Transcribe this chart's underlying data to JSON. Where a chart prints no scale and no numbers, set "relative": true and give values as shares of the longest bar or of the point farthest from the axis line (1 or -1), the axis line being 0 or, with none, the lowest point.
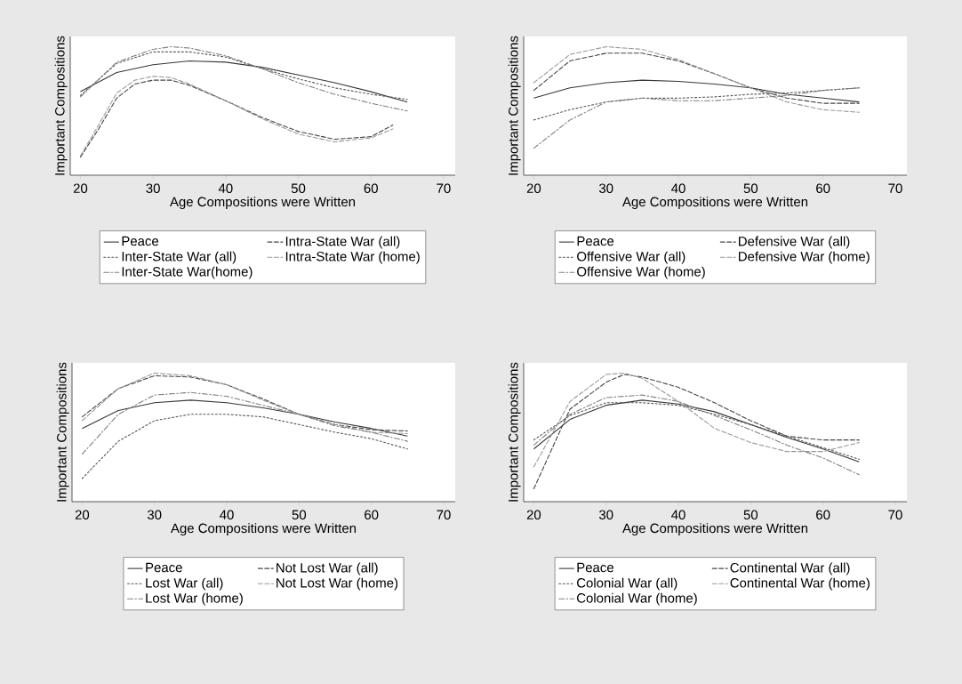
{
  "chart_data": [
    {
      "type": "line",
      "xlabel": "Age Compositions were Written",
      "ylabel": "Important Compositions",
      "xlim": [
        18.6,
        71.6
      ],
      "xticks": [
        20,
        30,
        40,
        50,
        60,
        70
      ],
      "relative": true,
      "legend": "bottom",
      "series": [
        {
          "name": "Peace",
          "color": "#383838",
          "line_style": "solid",
          "x": [
            20,
            25,
            30,
            35,
            40,
            45,
            50,
            55,
            60,
            65
          ],
          "values": [
            0.65,
            0.8,
            0.86,
            0.89,
            0.88,
            0.84,
            0.78,
            0.72,
            0.65,
            0.57
          ]
        },
        {
          "name": "Intra-State War (all)",
          "color": "#454545",
          "line_style": "dashed",
          "x": [
            20,
            22.5,
            25,
            27.5,
            30,
            32.5,
            35,
            40,
            45,
            50,
            55,
            60,
            63
          ],
          "values": [
            0.14,
            0.36,
            0.6,
            0.71,
            0.74,
            0.74,
            0.7,
            0.58,
            0.45,
            0.34,
            0.28,
            0.3,
            0.39
          ]
        },
        {
          "name": "Inter-State War (all)",
          "color": "#555555",
          "line_style": "dotted",
          "x": [
            20,
            25,
            30,
            35,
            40,
            45,
            50,
            55,
            60,
            65
          ],
          "values": [
            0.62,
            0.87,
            0.96,
            0.96,
            0.92,
            0.83,
            0.75,
            0.68,
            0.63,
            0.59
          ]
        },
        {
          "name": "Intra-State War (home)",
          "color": "#9a9a9a",
          "line_style": "dashed",
          "x": [
            20,
            22.5,
            25,
            27.5,
            30,
            32.5,
            35,
            40,
            45,
            50,
            55,
            60,
            63
          ],
          "values": [
            0.15,
            0.39,
            0.64,
            0.74,
            0.77,
            0.76,
            0.71,
            0.58,
            0.44,
            0.32,
            0.26,
            0.29,
            0.36
          ]
        },
        {
          "name": "Inter-State War(home)",
          "color": "#808080",
          "line_style": "dashdot",
          "x": [
            20,
            25,
            30,
            32.5,
            35,
            40,
            45,
            50,
            55,
            60,
            65
          ],
          "values": [
            0.61,
            0.88,
            0.98,
            1.0,
            0.99,
            0.93,
            0.83,
            0.72,
            0.63,
            0.56,
            0.5
          ]
        }
      ]
    },
    {
      "type": "line",
      "xlabel": "Age Compositions were Written",
      "ylabel": "Important Compositions",
      "xlim": [
        18.6,
        71.6
      ],
      "xticks": [
        20,
        30,
        40,
        50,
        60,
        70
      ],
      "relative": true,
      "legend": "bottom",
      "series": [
        {
          "name": "Peace",
          "color": "#383838",
          "line_style": "solid",
          "x": [
            20,
            25,
            30,
            35,
            40,
            45,
            50,
            55,
            60,
            65
          ],
          "values": [
            0.6,
            0.68,
            0.72,
            0.74,
            0.73,
            0.71,
            0.68,
            0.63,
            0.6,
            0.57
          ]
        },
        {
          "name": "Defensive War (all)",
          "color": "#454545",
          "line_style": "dashed",
          "x": [
            20,
            25,
            30,
            35,
            40,
            45,
            50,
            55,
            60,
            65
          ],
          "values": [
            0.66,
            0.89,
            0.95,
            0.95,
            0.89,
            0.79,
            0.68,
            0.6,
            0.56,
            0.56
          ]
        },
        {
          "name": "Offensive War (all)",
          "color": "#555555",
          "line_style": "dotted",
          "x": [
            20,
            25,
            30,
            35,
            40,
            45,
            50,
            55,
            60,
            65
          ],
          "values": [
            0.43,
            0.51,
            0.57,
            0.6,
            0.6,
            0.61,
            0.63,
            0.64,
            0.66,
            0.68
          ]
        },
        {
          "name": "Defensive War (home)",
          "color": "#9a9a9a",
          "line_style": "dashed",
          "x": [
            20,
            25,
            30,
            35,
            40,
            45,
            50,
            55,
            60,
            65
          ],
          "values": [
            0.72,
            0.94,
            1.0,
            0.98,
            0.9,
            0.79,
            0.68,
            0.57,
            0.51,
            0.49
          ]
        },
        {
          "name": "Offensive War (home)",
          "color": "#808080",
          "line_style": "dashdot",
          "x": [
            20,
            25,
            30,
            35,
            40,
            45,
            50,
            55,
            60,
            65
          ],
          "values": [
            0.21,
            0.43,
            0.57,
            0.6,
            0.58,
            0.58,
            0.6,
            0.62,
            0.66,
            0.68
          ]
        }
      ]
    },
    {
      "type": "line",
      "xlabel": "Age Compositions were Written",
      "ylabel": "Important Compositions",
      "xlim": [
        18.6,
        71.6
      ],
      "xticks": [
        20,
        30,
        40,
        50,
        60,
        70
      ],
      "relative": true,
      "legend": "bottom",
      "series": [
        {
          "name": "Peace",
          "color": "#383838",
          "line_style": "solid",
          "x": [
            20,
            25,
            30,
            35,
            40,
            45,
            50,
            55,
            60,
            65
          ],
          "values": [
            0.57,
            0.71,
            0.77,
            0.79,
            0.77,
            0.73,
            0.68,
            0.62,
            0.57,
            0.51
          ]
        },
        {
          "name": "Not Lost War (all)",
          "color": "#454545",
          "line_style": "dashed",
          "x": [
            20,
            25,
            30,
            35,
            40,
            45,
            50,
            55,
            60,
            65
          ],
          "values": [
            0.66,
            0.88,
            0.98,
            0.97,
            0.91,
            0.8,
            0.68,
            0.6,
            0.56,
            0.55
          ]
        },
        {
          "name": "Lost War (all)",
          "color": "#555555",
          "line_style": "dotted",
          "x": [
            20,
            25,
            30,
            35,
            40,
            45,
            50,
            55,
            60,
            65
          ],
          "values": [
            0.18,
            0.47,
            0.63,
            0.68,
            0.68,
            0.66,
            0.6,
            0.54,
            0.49,
            0.41
          ]
        },
        {
          "name": "Not Lost War (home)",
          "color": "#9a9a9a",
          "line_style": "dashed",
          "x": [
            20,
            25,
            30,
            35,
            40,
            45,
            50,
            55,
            60,
            65
          ],
          "values": [
            0.63,
            0.88,
            1.0,
            0.98,
            0.91,
            0.79,
            0.68,
            0.6,
            0.54,
            0.53
          ]
        },
        {
          "name": "Lost War (home)",
          "color": "#808080",
          "line_style": "dashdot",
          "x": [
            20,
            25,
            30,
            35,
            40,
            45,
            50,
            55,
            60,
            65
          ],
          "values": [
            0.37,
            0.68,
            0.83,
            0.85,
            0.82,
            0.75,
            0.68,
            0.59,
            0.54,
            0.47
          ]
        }
      ]
    },
    {
      "type": "line",
      "xlabel": "Age Compositions were Written",
      "ylabel": "Important Compositions",
      "xlim": [
        18.6,
        71.6
      ],
      "xticks": [
        20,
        30,
        40,
        50,
        60,
        70
      ],
      "relative": true,
      "legend": "bottom",
      "series": [
        {
          "name": "Peace",
          "color": "#383838",
          "line_style": "solid",
          "x": [
            20,
            25,
            30,
            35,
            40,
            45,
            50,
            55,
            60,
            65
          ],
          "values": [
            0.41,
            0.64,
            0.75,
            0.79,
            0.76,
            0.7,
            0.6,
            0.5,
            0.41,
            0.31
          ]
        },
        {
          "name": "Continental War (all)",
          "color": "#454545",
          "line_style": "dashed",
          "x": [
            20,
            25,
            30,
            32.5,
            35,
            40,
            45,
            50,
            55,
            60,
            65
          ],
          "values": [
            0.1,
            0.72,
            0.93,
            0.99,
            0.97,
            0.89,
            0.77,
            0.63,
            0.51,
            0.48,
            0.48
          ]
        },
        {
          "name": "Colonial War (all)",
          "color": "#555555",
          "line_style": "dotted",
          "x": [
            20,
            25,
            30,
            35,
            40,
            45,
            50,
            55,
            60,
            65
          ],
          "values": [
            0.48,
            0.67,
            0.77,
            0.77,
            0.75,
            0.68,
            0.6,
            0.51,
            0.42,
            0.33
          ]
        },
        {
          "name": "Continental War (home)",
          "color": "#9a9a9a",
          "line_style": "dashed",
          "x": [
            20,
            25,
            30,
            32.5,
            35,
            40,
            45,
            50,
            55,
            60,
            65
          ],
          "values": [
            0.27,
            0.78,
            0.99,
            1.0,
            0.96,
            0.78,
            0.57,
            0.46,
            0.39,
            0.39,
            0.46
          ]
        },
        {
          "name": "Colonial War (home)",
          "color": "#808080",
          "line_style": "dashdot",
          "x": [
            20,
            25,
            30,
            35,
            40,
            45,
            50,
            55,
            60,
            65
          ],
          "values": [
            0.44,
            0.68,
            0.81,
            0.83,
            0.78,
            0.67,
            0.56,
            0.44,
            0.34,
            0.21
          ]
        }
      ]
    }
  ]
}
